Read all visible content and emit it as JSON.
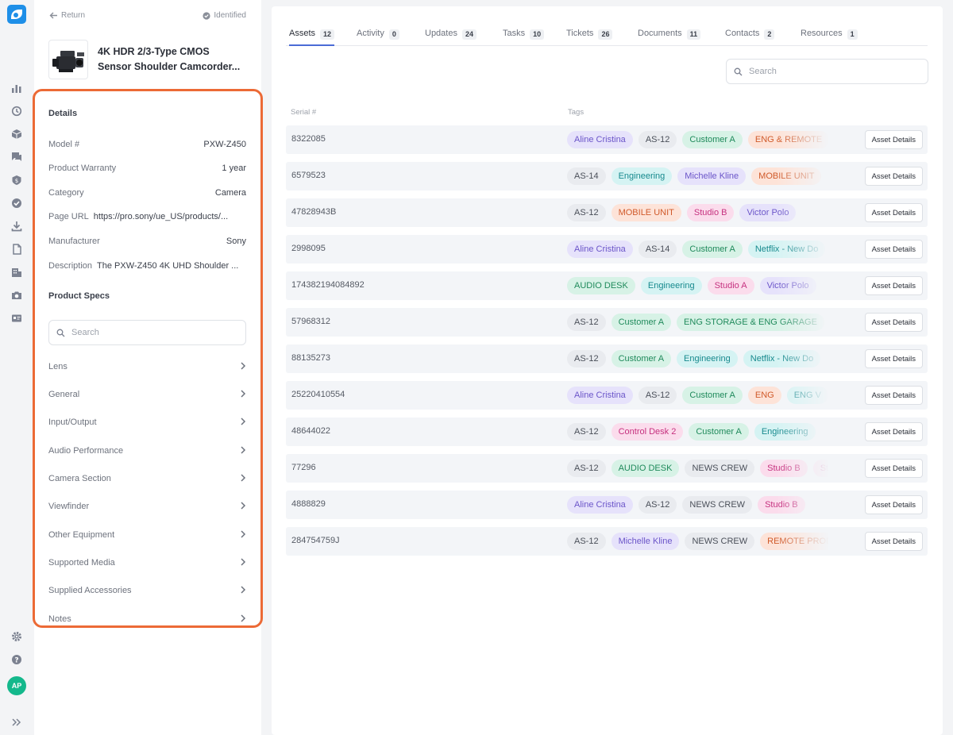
{
  "header": {
    "return_label": "Return",
    "status_label": "Identified",
    "product_title_line1": "4K HDR 2/3-Type CMOS",
    "product_title_line2": "Sensor Shoulder Camcorder..."
  },
  "details": {
    "title": "Details",
    "rows": [
      {
        "key": "Model #",
        "value": "PXW-Z450"
      },
      {
        "key": "Product Warranty",
        "value": "1 year"
      },
      {
        "key": "Category",
        "value": "Camera"
      },
      {
        "key": "Page URL",
        "value": "https://pro.sony/ue_US/products/..."
      },
      {
        "key": "Manufacturer",
        "value": "Sony"
      },
      {
        "key": "Description",
        "value": "The PXW-Z450 4K UHD Shoulder ..."
      }
    ]
  },
  "specs": {
    "title": "Product Specs",
    "search_placeholder": "Search",
    "items": [
      "Lens",
      "General",
      "Input/Output",
      "Audio Performance",
      "Camera Section",
      "Viewfinder",
      "Other Equipment",
      "Supported Media",
      "Supplied Accessories",
      "Notes"
    ]
  },
  "tabs": [
    {
      "label": "Assets",
      "count": "12",
      "active": true
    },
    {
      "label": "Activity",
      "count": "0"
    },
    {
      "label": "Updates",
      "count": "24"
    },
    {
      "label": "Tasks",
      "count": "10"
    },
    {
      "label": "Tickets",
      "count": "26"
    },
    {
      "label": "Documents",
      "count": "11"
    },
    {
      "label": "Contacts",
      "count": "2"
    },
    {
      "label": "Resources",
      "count": "1"
    }
  ],
  "assets": {
    "search_placeholder": "Search",
    "col_serial": "Serial #",
    "col_tags": "Tags",
    "button_label": "Asset Details",
    "rows": [
      {
        "serial": "8322085",
        "tags": [
          [
            "Aline Cristina",
            "purple"
          ],
          [
            "AS-12",
            "gray"
          ],
          [
            "Customer A",
            "green"
          ],
          [
            "ENG & REMOTE",
            "orange"
          ]
        ]
      },
      {
        "serial": "6579523",
        "tags": [
          [
            "AS-14",
            "gray"
          ],
          [
            "Engineering",
            "cyan"
          ],
          [
            "Michelle Kline",
            "purple"
          ],
          [
            "MOBILE UNIT",
            "orange"
          ]
        ]
      },
      {
        "serial": "47828943B",
        "tags": [
          [
            "AS-12",
            "gray"
          ],
          [
            "MOBILE UNIT",
            "orange"
          ],
          [
            "Studio B",
            "pink"
          ],
          [
            "Victor Polo",
            "purple"
          ]
        ]
      },
      {
        "serial": "2998095",
        "tags": [
          [
            "Aline Cristina",
            "purple"
          ],
          [
            "AS-14",
            "gray"
          ],
          [
            "Customer A",
            "green"
          ],
          [
            "Netflix - New Do",
            "cyan"
          ]
        ]
      },
      {
        "serial": "174382194084892",
        "tags": [
          [
            "AUDIO DESK",
            "green"
          ],
          [
            "Engineering",
            "cyan"
          ],
          [
            "Studio A",
            "pink"
          ],
          [
            "Victor Polo",
            "purple"
          ]
        ]
      },
      {
        "serial": "57968312",
        "tags": [
          [
            "AS-12",
            "gray"
          ],
          [
            "Customer A",
            "green"
          ],
          [
            "ENG STORAGE & ENG GARAGE",
            "green"
          ]
        ]
      },
      {
        "serial": "88135273",
        "tags": [
          [
            "AS-12",
            "gray"
          ],
          [
            "Customer A",
            "green"
          ],
          [
            "Engineering",
            "cyan"
          ],
          [
            "Netflix - New Do",
            "cyan"
          ]
        ]
      },
      {
        "serial": "25220410554",
        "tags": [
          [
            "Aline Cristina",
            "purple"
          ],
          [
            "AS-12",
            "gray"
          ],
          [
            "Customer A",
            "green"
          ],
          [
            "ENG",
            "orange"
          ],
          [
            "ENG V",
            "cyan"
          ]
        ]
      },
      {
        "serial": "48644022",
        "tags": [
          [
            "AS-12",
            "gray"
          ],
          [
            "Control Desk 2",
            "pink"
          ],
          [
            "Customer A",
            "green"
          ],
          [
            "Engineering",
            "cyan"
          ]
        ]
      },
      {
        "serial": "77296",
        "tags": [
          [
            "AS-12",
            "gray"
          ],
          [
            "AUDIO DESK",
            "green"
          ],
          [
            "NEWS CREW",
            "gray"
          ],
          [
            "Studio B",
            "pink"
          ],
          [
            "Stu",
            "pink"
          ]
        ]
      },
      {
        "serial": "4888829",
        "tags": [
          [
            "Aline Cristina",
            "purple"
          ],
          [
            "AS-12",
            "gray"
          ],
          [
            "NEWS CREW",
            "gray"
          ],
          [
            "Studio B",
            "pink"
          ]
        ]
      },
      {
        "serial": "284754759J",
        "tags": [
          [
            "AS-12",
            "gray"
          ],
          [
            "Michelle Kline",
            "purple"
          ],
          [
            "NEWS CREW",
            "gray"
          ],
          [
            "REMOTE PROD",
            "orange"
          ]
        ]
      }
    ]
  },
  "user": {
    "initials": "AP"
  },
  "colors": {
    "brand": "#1e8fe8",
    "highlight": "#ec6a36",
    "avatar": "#14b88c",
    "active_tab": "#4b6bd6"
  }
}
